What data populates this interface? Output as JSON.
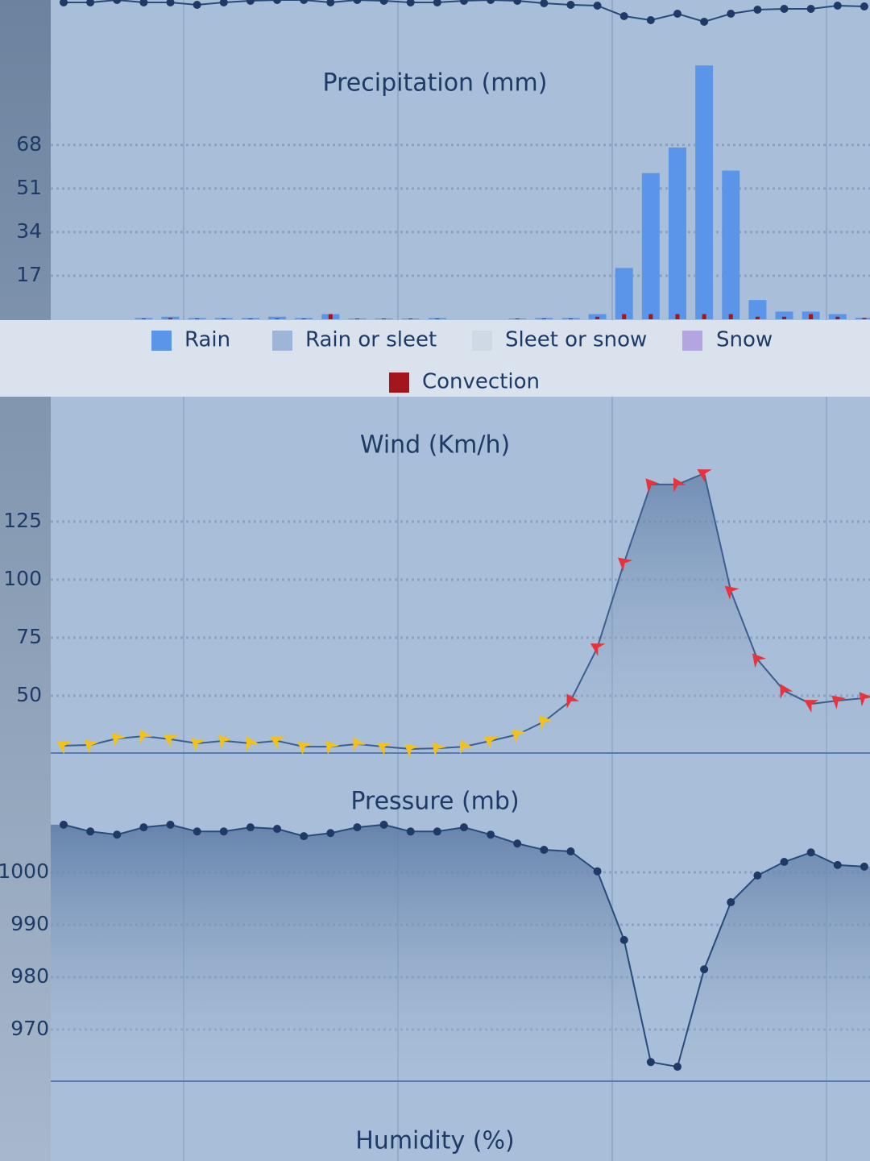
{
  "chart_data": [
    {
      "type": "line",
      "color": "#274b7a",
      "ylim": [
        0,
        30
      ],
      "values": [
        27,
        27,
        30,
        27,
        27,
        24,
        27,
        29,
        30,
        30,
        27,
        30,
        29,
        27,
        27,
        29,
        30,
        29,
        26,
        24,
        23,
        10,
        5,
        13,
        3,
        13,
        18,
        19,
        19,
        23,
        22
      ]
    },
    {
      "type": "bar",
      "title": "Precipitation (mm)",
      "ylim": [
        0,
        100
      ],
      "yticks": [
        17,
        34,
        51,
        68
      ],
      "grid": true,
      "series": [
        {
          "name": "Rain",
          "color": "#5b95ea",
          "values": [
            0,
            0,
            0,
            0.5,
            1,
            0.5,
            0.5,
            0.5,
            1,
            0.5,
            2,
            0.3,
            0.3,
            0.3,
            0.5,
            0,
            0,
            0.3,
            0.5,
            0.5,
            2,
            20,
            57,
            67,
            99,
            58,
            7.5,
            3,
            3,
            2,
            0.6
          ]
        },
        {
          "name": "Rain or sleet",
          "color": "#9db6d8",
          "values": [
            0,
            0,
            0,
            0,
            0,
            0,
            0,
            0,
            0,
            0,
            0,
            0,
            0,
            0,
            0,
            0,
            0,
            0,
            0,
            0,
            0,
            0,
            0,
            0,
            0,
            0,
            0,
            0,
            0,
            0,
            0
          ]
        },
        {
          "name": "Sleet or snow",
          "color": "#cfd9e6",
          "values": [
            0,
            0,
            0,
            0,
            0,
            0,
            0,
            0,
            0,
            0,
            0,
            0,
            0,
            0,
            0,
            0,
            0,
            0,
            0,
            0,
            0,
            0,
            0,
            0,
            0,
            0,
            0,
            0,
            0,
            0,
            0
          ]
        },
        {
          "name": "Snow",
          "color": "#b3a6e0",
          "values": [
            0,
            0,
            0,
            0,
            0,
            0,
            0,
            0,
            0,
            0,
            0,
            0,
            0,
            0,
            0,
            0,
            0,
            0,
            0,
            0,
            0,
            0,
            0,
            0,
            0,
            0,
            0,
            0,
            0,
            0,
            0
          ]
        },
        {
          "name": "Convection",
          "color": "#a3161b",
          "values": [
            0,
            0,
            0,
            0.3,
            0.5,
            0.3,
            0.3,
            0.3,
            0.3,
            0.3,
            2,
            0.3,
            0.3,
            0.3,
            0.3,
            0,
            0,
            0.3,
            0.3,
            0.3,
            1,
            2,
            2,
            2,
            2,
            2,
            1,
            1,
            2,
            1,
            0.5
          ]
        }
      ]
    },
    {
      "type": "area",
      "title": "Wind (Km/h)",
      "ylim": [
        25,
        150
      ],
      "yticks": [
        50,
        75,
        100,
        125
      ],
      "grid": true,
      "color": "#3d5f8f",
      "values": [
        28.5,
        28.8,
        31.6,
        32.6,
        31.3,
        29.5,
        30.6,
        29.5,
        30.6,
        28.1,
        28.1,
        29.2,
        28.1,
        27.1,
        27.4,
        28.1,
        30.6,
        33.3,
        38.9,
        47.9,
        70.8,
        107.3,
        141,
        141,
        145.8,
        95.1,
        65.6,
        52.1,
        46.5,
        47.9,
        49
      ],
      "marker_colors": [
        "#f2c21b",
        "#f2c21b",
        "#f2c21b",
        "#f2c21b",
        "#f2c21b",
        "#f2c21b",
        "#f2c21b",
        "#f2c21b",
        "#f2c21b",
        "#f2c21b",
        "#f2c21b",
        "#f2c21b",
        "#f2c21b",
        "#f2c21b",
        "#f2c21b",
        "#f2c21b",
        "#f2c21b",
        "#f2c21b",
        "#f2c21b",
        "#e8333c",
        "#e8333c",
        "#e8333c",
        "#e8333c",
        "#e8333c",
        "#e8333c",
        "#e8333c",
        "#e8333c",
        "#e8333c",
        "#e8333c",
        "#e8333c",
        "#e8333c"
      ]
    },
    {
      "type": "area",
      "title": "Pressure (mb)",
      "ylim": [
        960,
        1012
      ],
      "yticks": [
        970,
        980,
        990,
        1000
      ],
      "grid": true,
      "color": "#274b7a",
      "values": [
        1009.1,
        1007.8,
        1007.2,
        1008.6,
        1009.1,
        1007.8,
        1007.8,
        1008.6,
        1008.3,
        1006.9,
        1007.5,
        1008.6,
        1009.1,
        1007.8,
        1007.8,
        1008.6,
        1007.2,
        1005.5,
        1004.3,
        1004,
        1000.2,
        987.1,
        963.8,
        962.9,
        981.5,
        994.3,
        999.4,
        1002,
        1003.8,
        1001.4,
        1001.1
      ]
    },
    {
      "type": "line",
      "title": "Humidity (%)"
    }
  ]
}
